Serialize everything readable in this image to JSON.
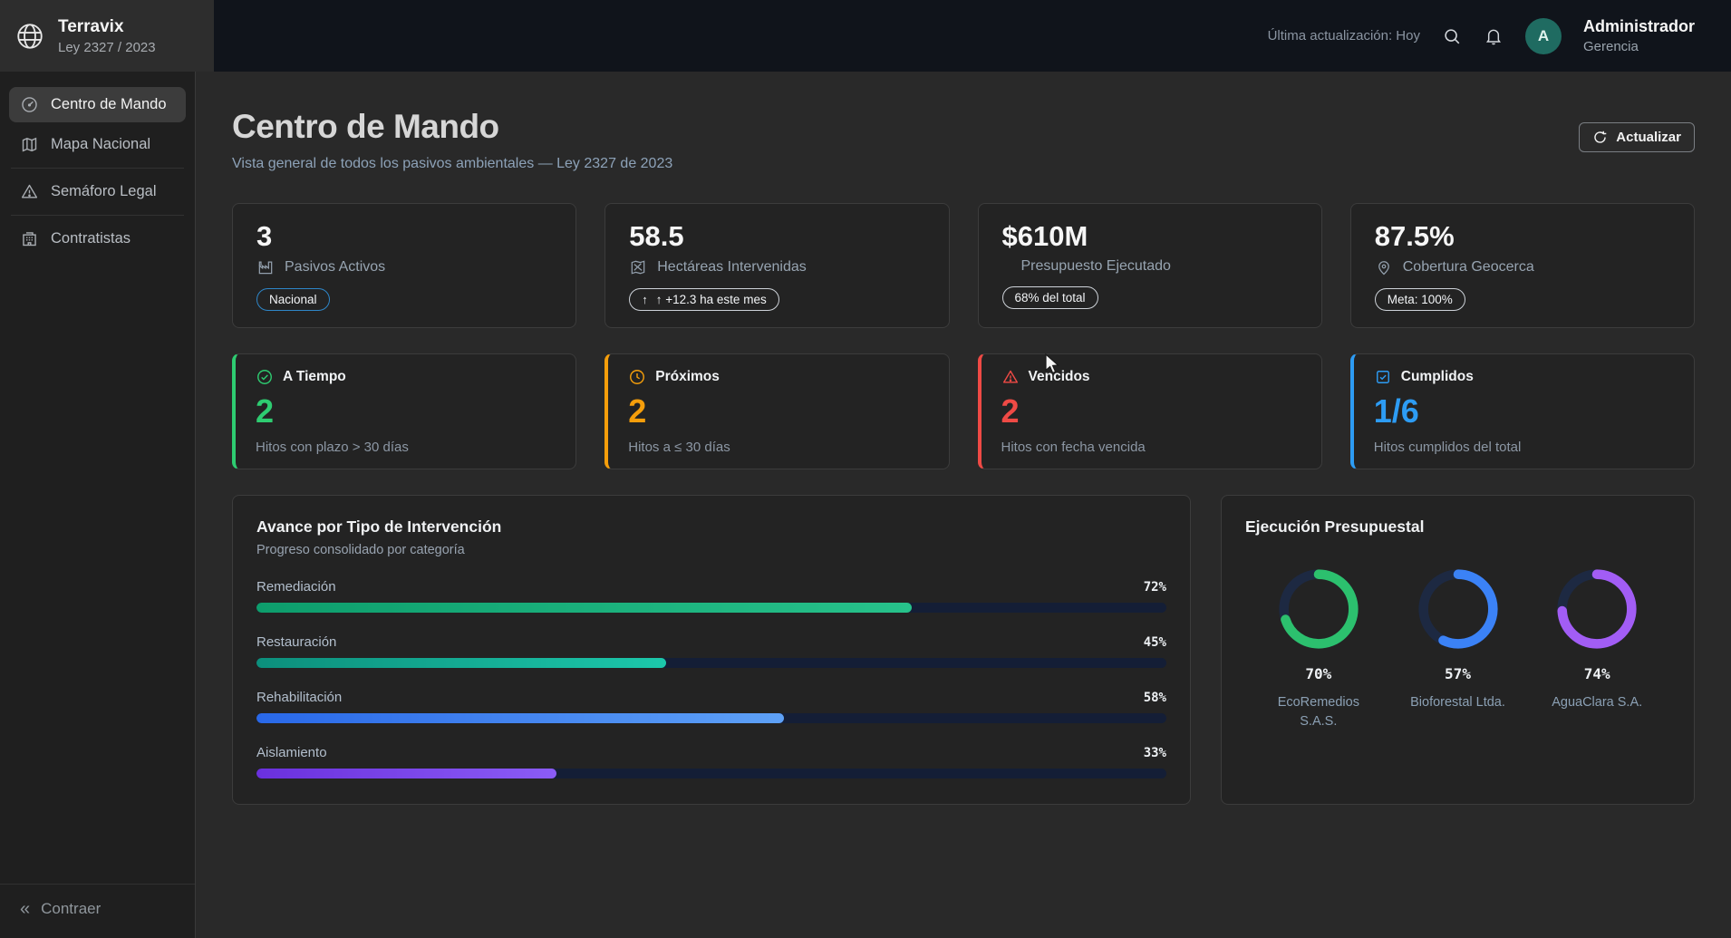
{
  "brand": {
    "name": "Terravix",
    "subtitle": "Ley 2327 / 2023"
  },
  "topbar": {
    "last_update": "Última actualización: Hoy",
    "user_name": "Administrador",
    "user_role": "Gerencia",
    "avatar_initial": "A"
  },
  "sidebar": {
    "items": [
      {
        "label": "Centro de Mando",
        "icon": "gauge-icon",
        "active": true
      },
      {
        "label": "Mapa Nacional",
        "icon": "map-icon",
        "active": false
      },
      {
        "label": "Semáforo Legal",
        "icon": "warning-triangle-icon",
        "active": false
      },
      {
        "label": "Contratistas",
        "icon": "building-icon",
        "active": false
      }
    ],
    "collapse_label": "Contraer",
    "collapse_glyph": "«"
  },
  "page": {
    "title": "Centro de Mando",
    "subtitle": "Vista general de todos los pasivos ambientales — Ley 2327 de 2023",
    "refresh_label": "Actualizar"
  },
  "kpis": [
    {
      "value": "3",
      "label": "Pasivos Activos",
      "badge": "Nacional",
      "icon": "factory-icon"
    },
    {
      "value": "58.5",
      "label": "Hectáreas Intervenidas",
      "badge": "↑ +12.3 ha este mes",
      "icon": "map-icon",
      "trend_glyph": "↑"
    },
    {
      "value": "$610M",
      "label": "Presupuesto Ejecutado",
      "badge": "68% del total",
      "icon": null
    },
    {
      "value": "87.5%",
      "label": "Cobertura Geocerca",
      "badge": "Meta: 100%",
      "icon": "pin-icon"
    }
  ],
  "status_cards": [
    {
      "title": "A Tiempo",
      "value": "2",
      "subtitle": "Hitos con plazo > 30 días",
      "color": "#2ecc71",
      "icon": "check-circle-icon"
    },
    {
      "title": "Próximos",
      "value": "2",
      "subtitle": "Hitos a ≤ 30 días",
      "color": "#f59e0b",
      "icon": "clock-icon"
    },
    {
      "title": "Vencidos",
      "value": "2",
      "subtitle": "Hitos con fecha vencida",
      "color": "#ef4a45",
      "icon": "warning-triangle-icon"
    },
    {
      "title": "Cumplidos",
      "value": "1/6",
      "subtitle": "Hitos cumplidos del total",
      "color": "#2d9cf4",
      "icon": "checkbox-icon"
    }
  ],
  "chart_data": [
    {
      "type": "bar",
      "title": "Avance por Tipo de Intervención",
      "subtitle": "Progreso consolidado por categoría",
      "categories": [
        "Remediación",
        "Restauración",
        "Rehabilitación",
        "Aislamiento"
      ],
      "values": [
        72,
        45,
        58,
        33
      ],
      "unit": "%",
      "xlim": [
        0,
        100
      ],
      "orientation": "horizontal",
      "track_color": "#141e36",
      "colors": [
        [
          "#0d9d6c",
          "#27c28b"
        ],
        [
          "#0c8f7c",
          "#1cc8ab"
        ],
        [
          "#2968e8",
          "#5ea1f7"
        ],
        [
          "#6a30dd",
          "#8b5cf6"
        ]
      ]
    },
    {
      "type": "donut",
      "title": "Ejecución Presupuestal",
      "track_color": "#1d2942",
      "series": [
        {
          "name": "EcoRemedios S.A.S.",
          "value": 70,
          "color": "#2cc06e"
        },
        {
          "name": "Bioforestal Ltda.",
          "value": 57,
          "color": "#3b82f6"
        },
        {
          "name": "AguaClara S.A.",
          "value": 74,
          "color": "#a25df5"
        }
      ]
    }
  ]
}
